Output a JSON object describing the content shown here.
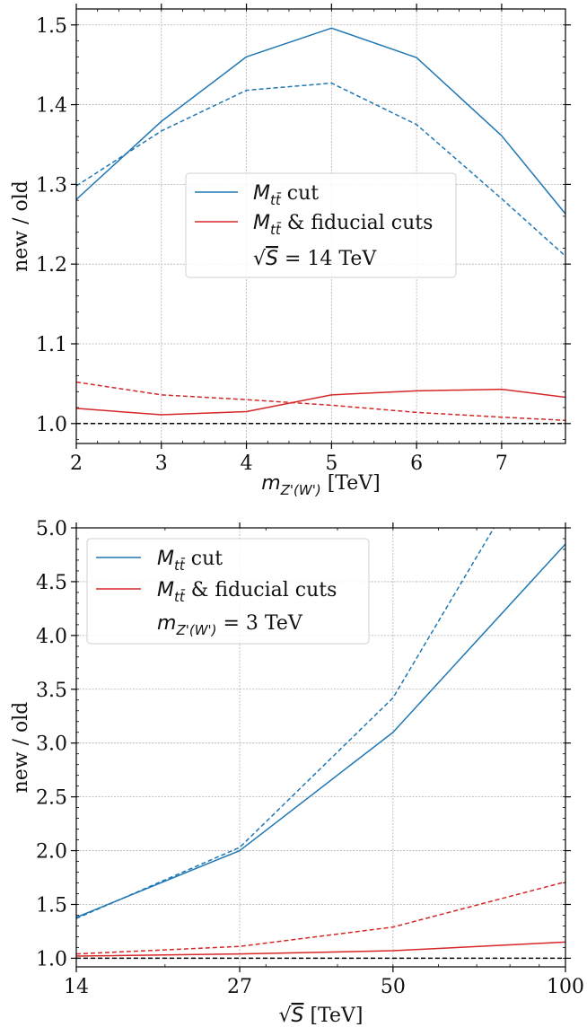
{
  "chart_data": [
    {
      "type": "line",
      "xlabel": "m_{Z'(W')} [TeV]",
      "ylabel": "new / old",
      "xlim": [
        2,
        7.75
      ],
      "ylim": [
        0.975,
        1.52
      ],
      "x_scale": "linear",
      "x_ticks": [
        2,
        3,
        4,
        5,
        6,
        7
      ],
      "x_tick_labels": [
        "2",
        "3",
        "4",
        "5",
        "6",
        "7"
      ],
      "y_ticks": [
        1.0,
        1.1,
        1.2,
        1.3,
        1.4,
        1.5
      ],
      "y_tick_labels": [
        "1.0",
        "1.1",
        "1.2",
        "1.3",
        "1.4",
        "1.5"
      ],
      "grid": true,
      "legend_position": "center-right",
      "legend": {
        "entries": [
          {
            "label": "M_{tt̄} cut",
            "color": "#1f77b4"
          },
          {
            "label": "M_{tt̄} & fiducial cuts",
            "color": "#d62728"
          }
        ],
        "note": "√S = 14 TeV"
      },
      "reference_line": {
        "y": 1.0,
        "style": "dashed",
        "color": "#000000"
      },
      "series": [
        {
          "color": "#1f77b4",
          "style": "solid",
          "x": [
            2,
            3,
            4,
            5,
            6,
            7,
            7.75
          ],
          "y": [
            1.281,
            1.379,
            1.46,
            1.496,
            1.459,
            1.361,
            1.263
          ]
        },
        {
          "color": "#1f77b4",
          "style": "dashed",
          "x": [
            2,
            3,
            4,
            5,
            6,
            7,
            7.75
          ],
          "y": [
            1.298,
            1.367,
            1.418,
            1.427,
            1.375,
            1.282,
            1.21
          ]
        },
        {
          "color": "#d62728",
          "style": "solid",
          "x": [
            2,
            3,
            4,
            5,
            6,
            7,
            7.75
          ],
          "y": [
            1.019,
            1.011,
            1.015,
            1.036,
            1.041,
            1.043,
            1.033
          ]
        },
        {
          "color": "#d62728",
          "style": "dashed",
          "x": [
            2,
            3,
            4,
            5,
            6,
            7,
            7.75
          ],
          "y": [
            1.052,
            1.036,
            1.03,
            1.023,
            1.014,
            1.008,
            1.004
          ]
        }
      ]
    },
    {
      "type": "line",
      "xlabel": "√S [TeV]",
      "ylabel": "new / old",
      "xlim": [
        14,
        100
      ],
      "ylim": [
        0.92,
        5.0
      ],
      "x_scale": "log",
      "x_ticks": [
        14,
        27,
        50,
        100
      ],
      "x_tick_labels": [
        "14",
        "27",
        "50",
        "100"
      ],
      "y_ticks": [
        1.0,
        1.5,
        2.0,
        2.5,
        3.0,
        3.5,
        4.0,
        4.5,
        5.0
      ],
      "y_tick_labels": [
        "1.0",
        "1.5",
        "2.0",
        "2.5",
        "3.0",
        "3.5",
        "4.0",
        "4.5",
        "5.0"
      ],
      "grid": true,
      "legend_position": "top-left",
      "legend": {
        "entries": [
          {
            "label": "M_{tt̄} cut",
            "color": "#1f77b4"
          },
          {
            "label": "M_{tt̄} & fiducial cuts",
            "color": "#d62728"
          }
        ],
        "note": "m_{Z'(W')} = 3 TeV"
      },
      "reference_line": {
        "y": 1.0,
        "style": "dashed",
        "color": "#000000"
      },
      "series": [
        {
          "color": "#1f77b4",
          "style": "solid",
          "x": [
            14,
            27,
            50,
            100
          ],
          "y": [
            1.38,
            2.0,
            3.1,
            4.85
          ]
        },
        {
          "color": "#1f77b4",
          "style": "dashed",
          "x": [
            14,
            27,
            50,
            75
          ],
          "y": [
            1.37,
            2.03,
            3.42,
            5.0
          ]
        },
        {
          "color": "#d62728",
          "style": "solid",
          "x": [
            14,
            27,
            50,
            100
          ],
          "y": [
            1.02,
            1.04,
            1.07,
            1.15
          ]
        },
        {
          "color": "#d62728",
          "style": "dashed",
          "x": [
            14,
            27,
            50,
            100
          ],
          "y": [
            1.04,
            1.11,
            1.29,
            1.71
          ]
        }
      ]
    }
  ]
}
